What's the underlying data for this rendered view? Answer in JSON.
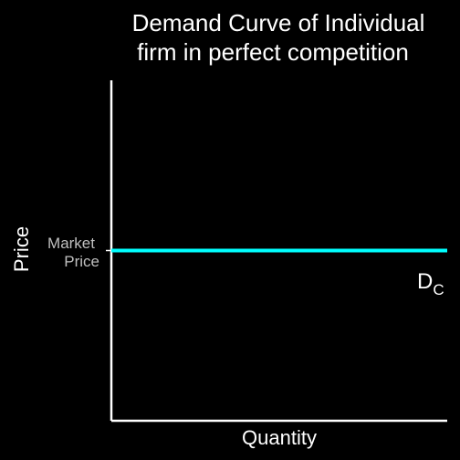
{
  "chart_data": {
    "type": "line",
    "title": "Demand Curve of Individual firm in perfect competition",
    "title_lines": [
      "Demand Curve of Individual",
      "firm in perfect competition"
    ],
    "xlabel": "Quantity",
    "ylabel": "Price",
    "y_tick_labels": [
      "Market",
      "Price"
    ],
    "xlim": [
      0,
      1
    ],
    "ylim": [
      0,
      1
    ],
    "series": [
      {
        "label_main": "D",
        "label_sub": "C",
        "x": [
          0,
          1
        ],
        "y": [
          0.5,
          0.5
        ],
        "color": "#00ffff"
      }
    ],
    "grid": false,
    "colors": {
      "background": "#000000",
      "axis": "#ffffff",
      "text": "#ffffff",
      "tick_text": "#bfbfbf"
    }
  }
}
